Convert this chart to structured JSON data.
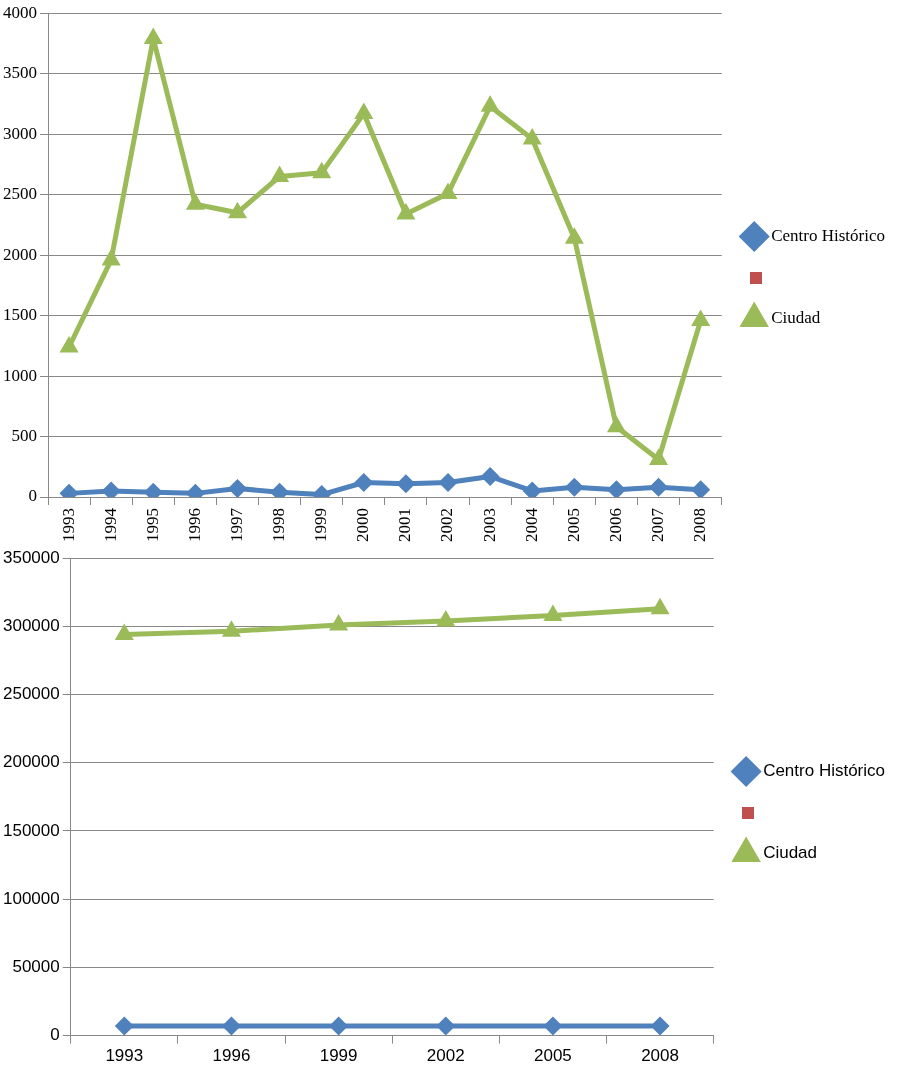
{
  "chart_data": [
    {
      "type": "line",
      "categories": [
        "1993",
        "1994",
        "1995",
        "1996",
        "1997",
        "1998",
        "1999",
        "2000",
        "2001",
        "2002",
        "2003",
        "2004",
        "2005",
        "2006",
        "2007",
        "2008"
      ],
      "series": [
        {
          "name": "Centro Histórico",
          "color": "#4f81bd",
          "marker": "diamond",
          "values": [
            30,
            50,
            40,
            30,
            70,
            40,
            20,
            120,
            110,
            120,
            170,
            50,
            80,
            60,
            80,
            60
          ]
        },
        {
          "color": "#c0504d",
          "marker": "square",
          "values": [
            null,
            null,
            null,
            null,
            null,
            null,
            null,
            null,
            null,
            null,
            null,
            null,
            null,
            null,
            null,
            null
          ]
        },
        {
          "name": "Ciudad",
          "color": "#9bbb59",
          "marker": "triangle",
          "values": [
            1240,
            1960,
            3790,
            2420,
            2350,
            2650,
            2680,
            3170,
            2340,
            2510,
            3230,
            2960,
            2140,
            580,
            310,
            1460
          ]
        }
      ],
      "ylim": [
        0,
        4000
      ],
      "yticks": [
        0,
        500,
        1000,
        1500,
        2000,
        2500,
        3000,
        3500,
        4000
      ],
      "grid": "y",
      "legend": "right"
    },
    {
      "type": "line",
      "categories": [
        "1993",
        "1996",
        "1999",
        "2002",
        "2005",
        "2008"
      ],
      "series": [
        {
          "name": "Centro Histórico",
          "color": "#4f81bd",
          "marker": "diamond",
          "values": [
            7000,
            7000,
            7000,
            7000,
            7000,
            7000
          ]
        },
        {
          "color": "#c0504d",
          "marker": "square",
          "values": [
            null,
            null,
            null,
            null,
            null,
            null
          ]
        },
        {
          "name": "Ciudad",
          "color": "#9bbb59",
          "marker": "triangle",
          "values": [
            294000,
            296500,
            301000,
            304000,
            308000,
            313000
          ]
        }
      ],
      "ylim": [
        0,
        350000
      ],
      "yticks": [
        0,
        50000,
        100000,
        150000,
        200000,
        250000,
        300000,
        350000
      ],
      "grid": "y",
      "legend": "right"
    }
  ]
}
